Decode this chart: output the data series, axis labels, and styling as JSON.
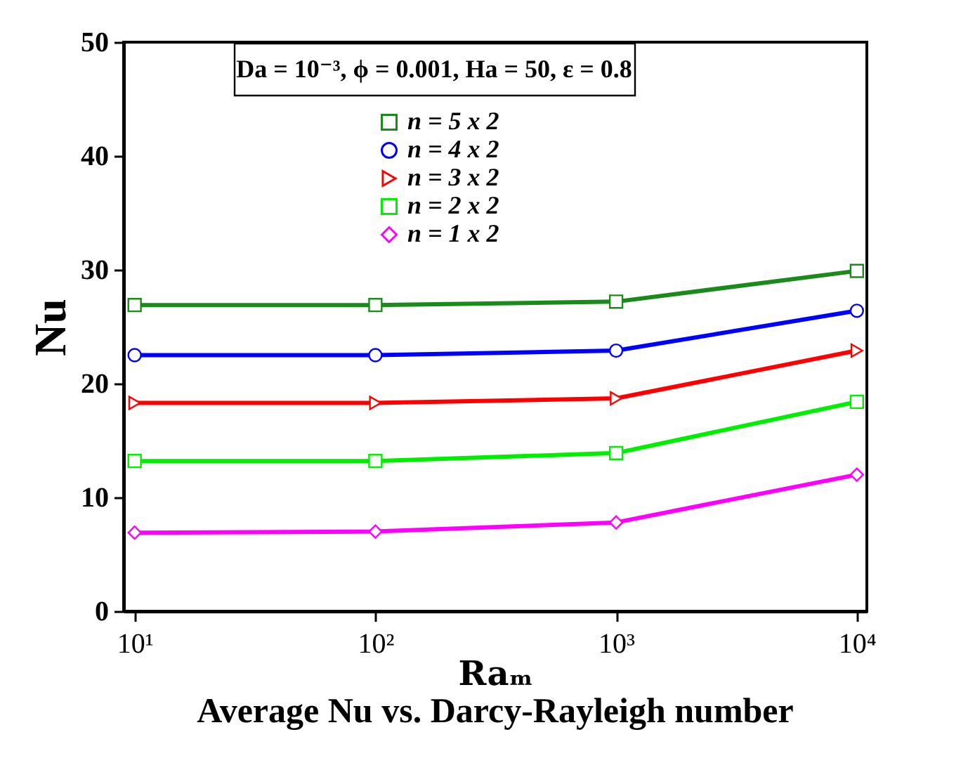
{
  "chart_data": {
    "type": "line",
    "title": "Average Nu vs. Darcy-Rayleigh number",
    "xlabel": "Raₘ",
    "ylabel": "Nu",
    "annotations": [
      "Da = 10⁻³, ϕ = 0.001, Ha = 50, ε = 0.8"
    ],
    "x": [
      10,
      100,
      1000,
      10000
    ],
    "xlim": [
      9,
      11000
    ],
    "xticks": [
      {
        "value": 10,
        "label": "10¹"
      },
      {
        "value": 100,
        "label": "10²"
      },
      {
        "value": 1000,
        "label": "10³"
      },
      {
        "value": 10000,
        "label": "10⁴"
      }
    ],
    "ylim": [
      0,
      50
    ],
    "yticks": [
      0,
      10,
      20,
      30,
      40,
      50
    ],
    "log": "x",
    "grid": false,
    "legend": "top",
    "series": [
      {
        "name": "n = 5 x 2",
        "color": "#1a8a1a",
        "marker": "square",
        "values": [
          26.9,
          26.9,
          27.2,
          29.9
        ]
      },
      {
        "name": "n = 4 x 2",
        "color": "#0000ff",
        "marker": "circle",
        "values": [
          22.5,
          22.5,
          22.9,
          26.4
        ]
      },
      {
        "name": "n = 3 x 2",
        "color": "#ff0000",
        "marker": "triangle",
        "values": [
          18.3,
          18.3,
          18.7,
          22.9
        ]
      },
      {
        "name": "n = 2 x 2",
        "color": "#00ee00",
        "marker": "square",
        "values": [
          13.2,
          13.2,
          13.9,
          18.4
        ]
      },
      {
        "name": "n = 1 x 2",
        "color": "#ff00ff",
        "marker": "diamond",
        "values": [
          6.9,
          7.0,
          7.8,
          12.0
        ]
      }
    ]
  }
}
